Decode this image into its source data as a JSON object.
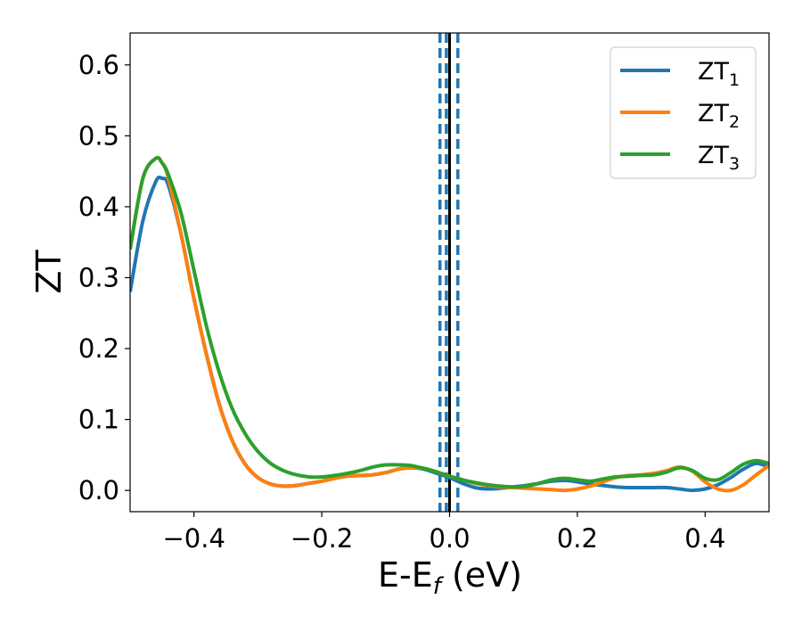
{
  "chart_data": {
    "type": "line",
    "xlabel": "E-E",
    "xlabel_sub": "f",
    "xlabel_unit": " (eV)",
    "ylabel": "ZT",
    "xlim": [
      -0.5,
      0.5
    ],
    "ylim": [
      -0.03,
      0.645
    ],
    "x_ticks": [
      -0.4,
      -0.2,
      0.0,
      0.2,
      0.4
    ],
    "x_tick_labels": [
      "−0.4",
      "−0.2",
      "0.0",
      "0.2",
      "0.4"
    ],
    "y_ticks": [
      0.0,
      0.1,
      0.2,
      0.3,
      0.4,
      0.5,
      0.6
    ],
    "y_tick_labels": [
      "0.0",
      "0.1",
      "0.2",
      "0.3",
      "0.4",
      "0.5",
      "0.6"
    ],
    "grid": false,
    "legend_position": "top-right",
    "vlines": [
      {
        "x": 0.0,
        "style": "solid",
        "color": "#000000"
      },
      {
        "x": -0.015,
        "style": "dashed",
        "color": "#1f77b4"
      },
      {
        "x": -0.005,
        "style": "dashed",
        "color": "#1f77b4"
      },
      {
        "x": 0.013,
        "style": "dashed",
        "color": "#1f77b4"
      }
    ],
    "series": [
      {
        "name": "ZT",
        "sub": "1",
        "color": "#1f77b4",
        "x": [
          -0.5,
          -0.48,
          -0.46,
          -0.45,
          -0.44,
          -0.42,
          -0.4,
          -0.38,
          -0.36,
          -0.34,
          -0.32,
          -0.3,
          -0.28,
          -0.26,
          -0.24,
          -0.22,
          -0.2,
          -0.18,
          -0.16,
          -0.14,
          -0.12,
          -0.1,
          -0.08,
          -0.06,
          -0.04,
          -0.02,
          0.0,
          0.02,
          0.04,
          0.06,
          0.08,
          0.1,
          0.12,
          0.14,
          0.16,
          0.18,
          0.2,
          0.22,
          0.24,
          0.26,
          0.28,
          0.3,
          0.32,
          0.34,
          0.36,
          0.38,
          0.4,
          0.42,
          0.44,
          0.46,
          0.48,
          0.5
        ],
        "y": [
          0.28,
          0.38,
          0.435,
          0.44,
          0.43,
          0.36,
          0.27,
          0.19,
          0.12,
          0.07,
          0.037,
          0.018,
          0.009,
          0.006,
          0.007,
          0.01,
          0.013,
          0.017,
          0.02,
          0.021,
          0.022,
          0.025,
          0.03,
          0.032,
          0.03,
          0.024,
          0.018,
          0.01,
          0.004,
          0.002,
          0.003,
          0.005,
          0.007,
          0.01,
          0.013,
          0.014,
          0.012,
          0.009,
          0.007,
          0.005,
          0.004,
          0.004,
          0.004,
          0.004,
          0.002,
          0.0,
          0.002,
          0.008,
          0.018,
          0.03,
          0.038,
          0.033
        ]
      },
      {
        "name": "ZT",
        "sub": "2",
        "color": "#ff7f0e",
        "x": [
          -0.5,
          -0.48,
          -0.46,
          -0.45,
          -0.44,
          -0.42,
          -0.4,
          -0.38,
          -0.36,
          -0.34,
          -0.32,
          -0.3,
          -0.28,
          -0.26,
          -0.24,
          -0.22,
          -0.2,
          -0.18,
          -0.16,
          -0.14,
          -0.12,
          -0.1,
          -0.08,
          -0.06,
          -0.04,
          -0.02,
          0.0,
          0.02,
          0.04,
          0.06,
          0.08,
          0.1,
          0.12,
          0.14,
          0.16,
          0.18,
          0.2,
          0.22,
          0.24,
          0.26,
          0.28,
          0.3,
          0.32,
          0.34,
          0.36,
          0.38,
          0.4,
          0.42,
          0.44,
          0.46,
          0.48,
          0.5
        ],
        "y": [
          0.34,
          0.44,
          0.468,
          0.462,
          0.44,
          0.36,
          0.27,
          0.19,
          0.12,
          0.07,
          0.037,
          0.018,
          0.009,
          0.006,
          0.007,
          0.01,
          0.013,
          0.017,
          0.02,
          0.021,
          0.022,
          0.025,
          0.03,
          0.032,
          0.031,
          0.026,
          0.02,
          0.015,
          0.01,
          0.007,
          0.005,
          0.004,
          0.003,
          0.002,
          0.001,
          0.0,
          0.002,
          0.006,
          0.012,
          0.018,
          0.021,
          0.022,
          0.024,
          0.028,
          0.033,
          0.027,
          0.012,
          0.002,
          0.0,
          0.008,
          0.022,
          0.035
        ]
      },
      {
        "name": "ZT",
        "sub": "3",
        "color": "#2ca02c",
        "x": [
          -0.5,
          -0.48,
          -0.46,
          -0.45,
          -0.44,
          -0.42,
          -0.4,
          -0.38,
          -0.36,
          -0.34,
          -0.32,
          -0.3,
          -0.28,
          -0.26,
          -0.24,
          -0.22,
          -0.2,
          -0.18,
          -0.16,
          -0.14,
          -0.12,
          -0.1,
          -0.08,
          -0.06,
          -0.04,
          -0.02,
          0.0,
          0.02,
          0.04,
          0.06,
          0.08,
          0.1,
          0.12,
          0.14,
          0.16,
          0.18,
          0.2,
          0.22,
          0.24,
          0.26,
          0.28,
          0.3,
          0.32,
          0.34,
          0.36,
          0.38,
          0.4,
          0.42,
          0.44,
          0.46,
          0.48,
          0.5
        ],
        "y": [
          0.34,
          0.44,
          0.468,
          0.462,
          0.445,
          0.39,
          0.31,
          0.23,
          0.165,
          0.115,
          0.08,
          0.055,
          0.038,
          0.028,
          0.022,
          0.019,
          0.019,
          0.021,
          0.024,
          0.028,
          0.033,
          0.036,
          0.036,
          0.035,
          0.031,
          0.026,
          0.02,
          0.015,
          0.011,
          0.008,
          0.006,
          0.005,
          0.006,
          0.01,
          0.015,
          0.017,
          0.015,
          0.013,
          0.016,
          0.019,
          0.02,
          0.021,
          0.022,
          0.026,
          0.032,
          0.028,
          0.017,
          0.015,
          0.025,
          0.037,
          0.042,
          0.038
        ]
      }
    ]
  }
}
